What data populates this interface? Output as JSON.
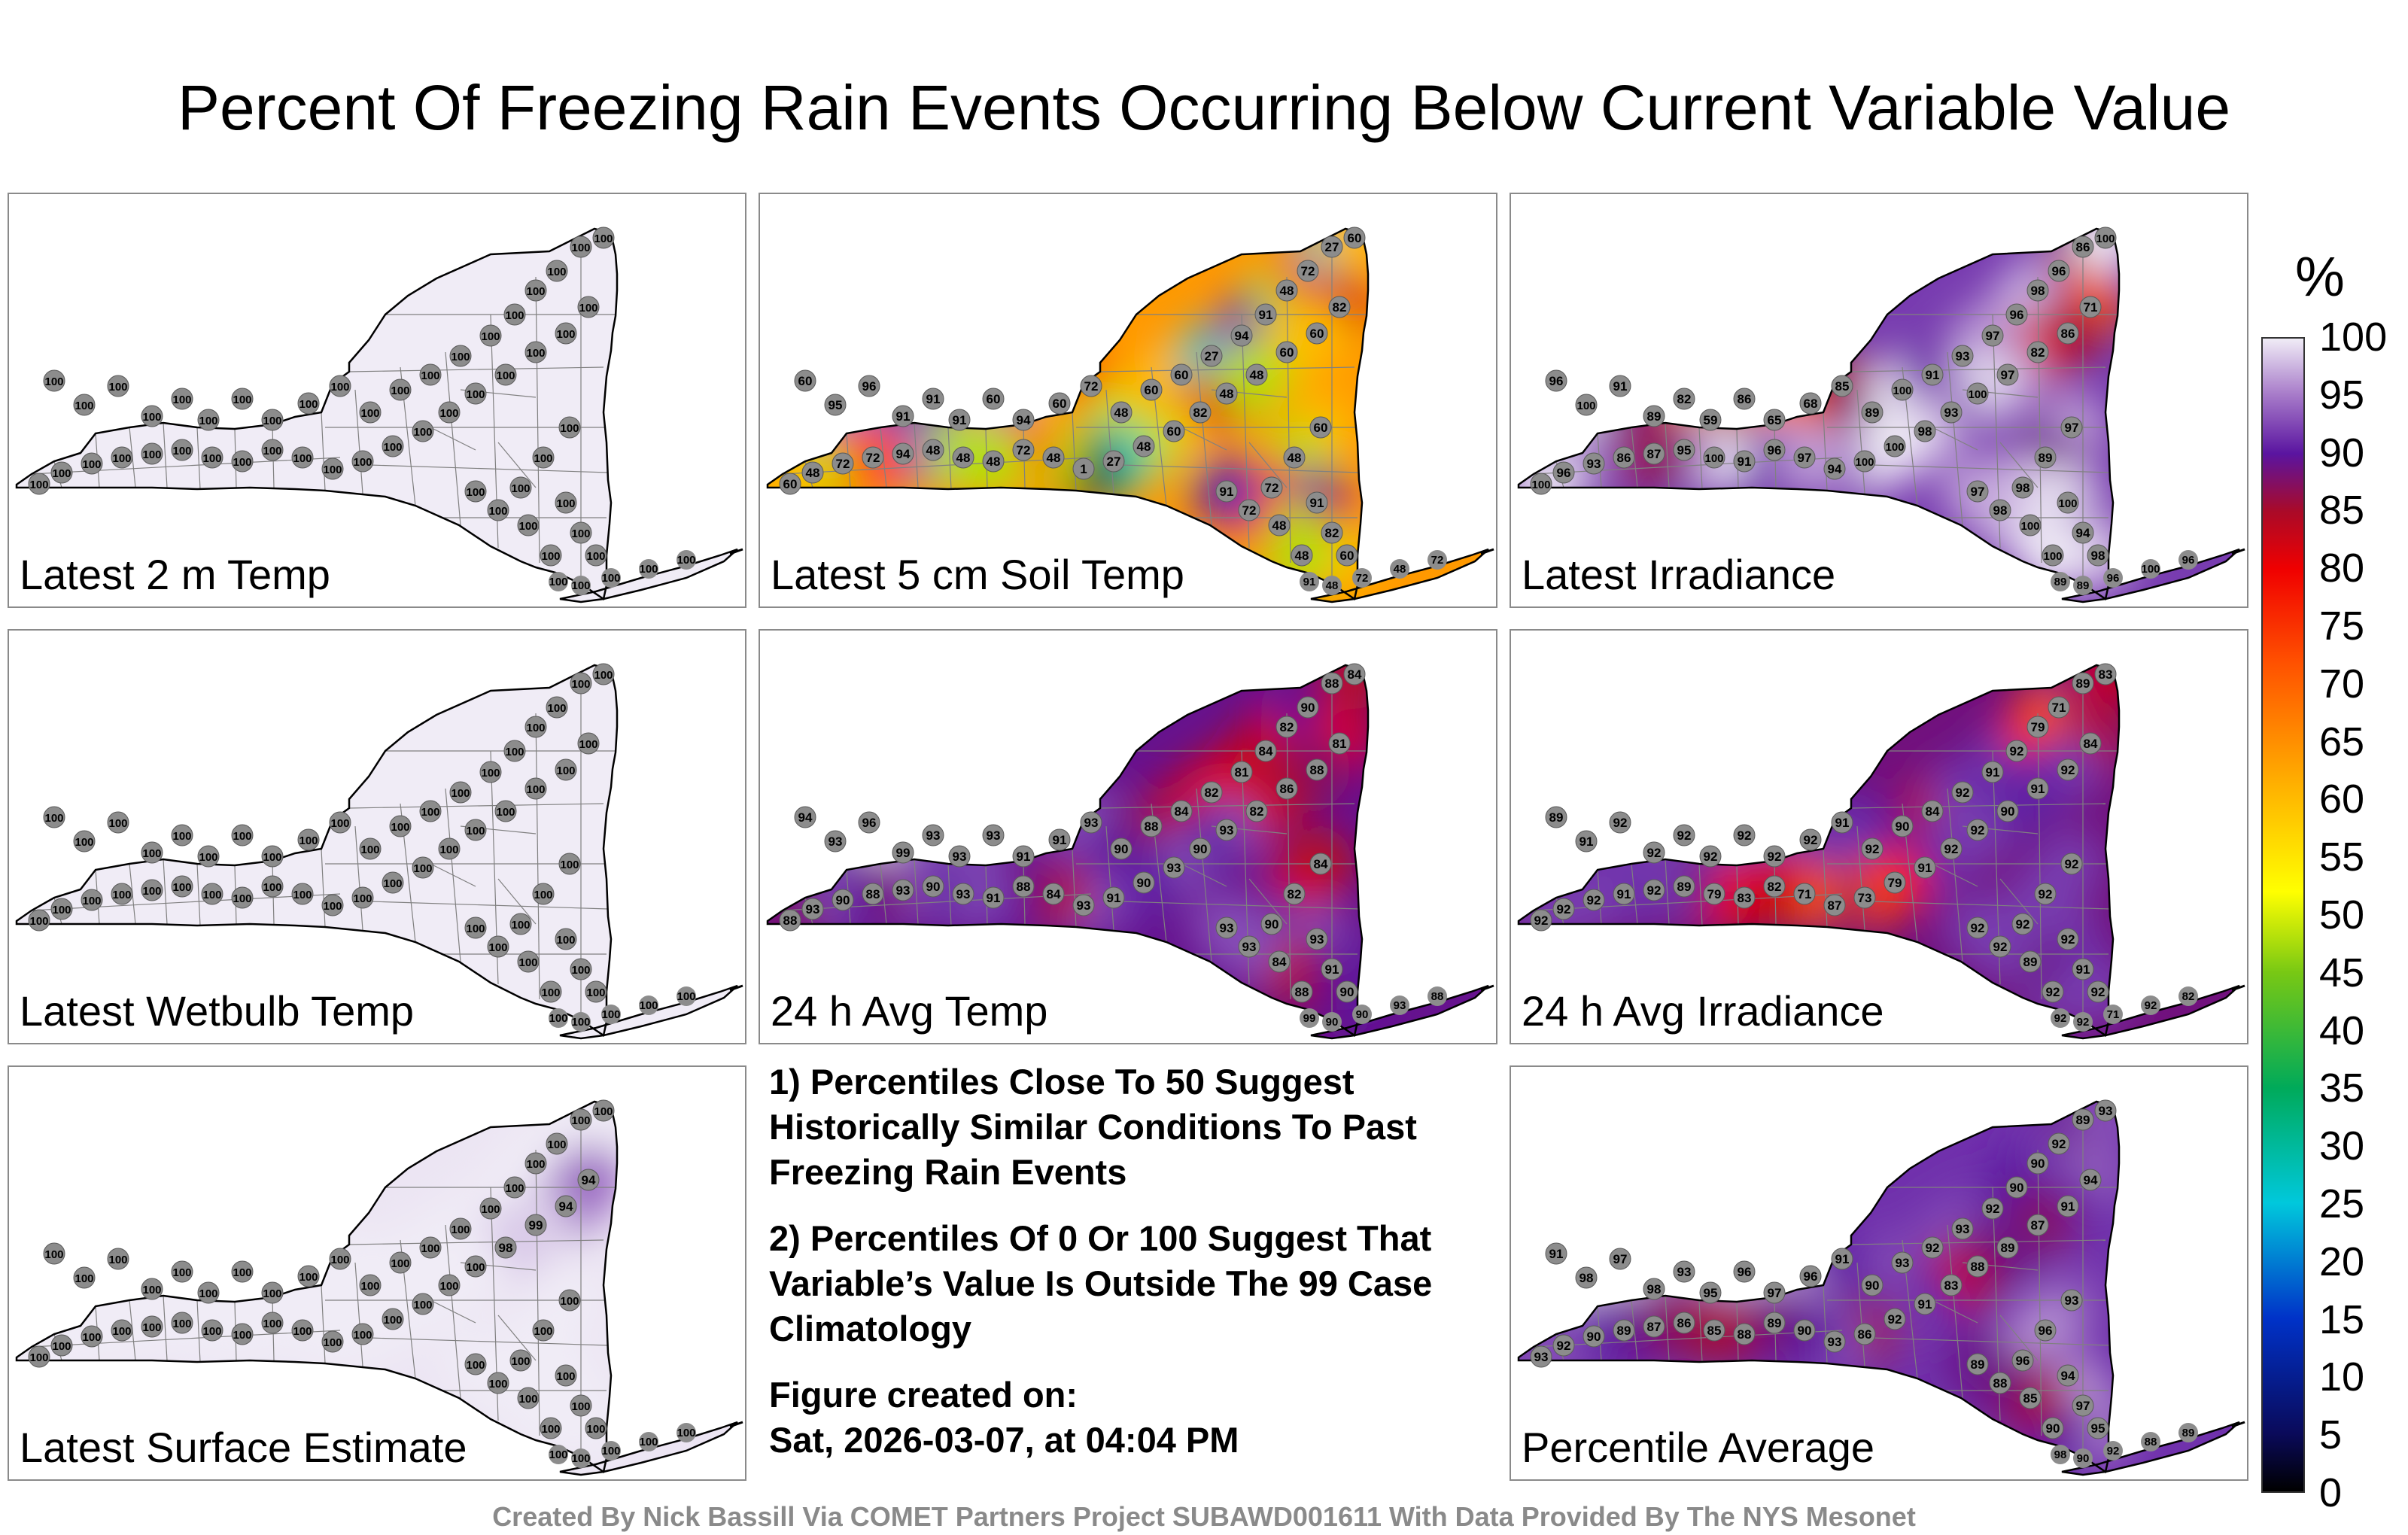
{
  "title": "Percent Of Freezing Rain Events Occurring Below Current Variable Value",
  "colors": {
    "panel_border": "#8a8a8a",
    "outline": "#000000",
    "county_lines": "#808080",
    "station_dot": "#8c8c8c",
    "credit_text": "#8a8a8a"
  },
  "panels": [
    {
      "label": "Latest 2 m Temp",
      "style": "uniform",
      "stations": [
        "100",
        "100",
        "100",
        "100",
        "100",
        "100",
        "100",
        "100",
        "100",
        "100",
        "100",
        "100",
        "100",
        "100",
        "100",
        "100",
        "100",
        "100",
        "100",
        "100",
        "100",
        "100",
        "100",
        "100",
        "100",
        "100",
        "100",
        "100",
        "100",
        "100",
        "100",
        "100",
        "100",
        "100",
        "100",
        "100",
        "100",
        "100",
        "100",
        "100",
        "100",
        "100",
        "100",
        "100",
        "100",
        "100",
        "100",
        "100",
        "100",
        "100"
      ]
    },
    {
      "label": "Latest 5 cm Soil Temp",
      "style": "soil",
      "stations": [
        "60",
        "95",
        "96",
        "91",
        "91",
        "91",
        "60",
        "94",
        "60",
        "72",
        "48",
        "60",
        "60",
        "27",
        "94",
        "91",
        "48",
        "72",
        "27",
        "60",
        "82",
        "60",
        "60",
        "48",
        "48",
        "82",
        "60",
        "48",
        "27",
        "1",
        "48",
        "72",
        "48",
        "48",
        "48",
        "94",
        "72",
        "72",
        "48",
        "60",
        "60",
        "48",
        "72",
        "91",
        "82",
        "60",
        "48",
        "48",
        "72",
        "91"
      ]
    },
    {
      "label": "Latest Irradiance",
      "style": "irradiance",
      "stations": [
        "96",
        "100",
        "91",
        "89",
        "82",
        "59",
        "86",
        "65",
        "68",
        "85",
        "89",
        "100",
        "91",
        "93",
        "97",
        "96",
        "98",
        "96",
        "86",
        "100",
        "71",
        "86",
        "82",
        "97",
        "100",
        "93",
        "98",
        "100",
        "100",
        "94",
        "97",
        "96",
        "91",
        "100",
        "95",
        "87",
        "86",
        "93",
        "96",
        "100",
        "97",
        "89",
        "98",
        "100",
        "94",
        "98",
        "100",
        "100",
        "98",
        "97"
      ]
    },
    {
      "label": "Latest Wetbulb Temp",
      "style": "uniform",
      "stations": [
        "100",
        "100",
        "100",
        "100",
        "100",
        "100",
        "100",
        "100",
        "100",
        "100",
        "100",
        "100",
        "100",
        "100",
        "100",
        "100",
        "100",
        "100",
        "100",
        "100",
        "100",
        "100",
        "100",
        "100",
        "100",
        "100",
        "100",
        "100",
        "100",
        "100",
        "100",
        "100",
        "100",
        "100",
        "100",
        "100",
        "100",
        "100",
        "100",
        "100",
        "100",
        "100",
        "100",
        "100",
        "100",
        "100",
        "100",
        "100",
        "100",
        "100"
      ]
    },
    {
      "label": "24 h Avg Temp",
      "style": "avgtemp",
      "stations": [
        "94",
        "93",
        "96",
        "99",
        "93",
        "93",
        "93",
        "91",
        "91",
        "93",
        "90",
        "88",
        "84",
        "82",
        "81",
        "84",
        "82",
        "90",
        "88",
        "84",
        "81",
        "88",
        "86",
        "82",
        "93",
        "90",
        "93",
        "90",
        "91",
        "93",
        "84",
        "88",
        "91",
        "93",
        "90",
        "93",
        "88",
        "90",
        "93",
        "88",
        "84",
        "82",
        "90",
        "93",
        "91",
        "90",
        "88",
        "84",
        "93",
        "93"
      ]
    },
    {
      "label": "24 h Avg Irradiance",
      "style": "avgirr",
      "stations": [
        "89",
        "91",
        "92",
        "92",
        "92",
        "92",
        "92",
        "92",
        "92",
        "91",
        "92",
        "90",
        "84",
        "92",
        "91",
        "92",
        "79",
        "71",
        "89",
        "83",
        "84",
        "92",
        "91",
        "90",
        "92",
        "92",
        "91",
        "79",
        "73",
        "87",
        "71",
        "82",
        "83",
        "79",
        "89",
        "92",
        "91",
        "92",
        "92",
        "92",
        "92",
        "92",
        "92",
        "92",
        "91",
        "92",
        "92",
        "89",
        "92",
        "92"
      ]
    },
    {
      "label": "Latest Surface Estimate",
      "style": "surface",
      "stations": [
        "100",
        "100",
        "100",
        "100",
        "100",
        "100",
        "100",
        "100",
        "100",
        "100",
        "100",
        "100",
        "100",
        "100",
        "100",
        "100",
        "100",
        "100",
        "100",
        "100",
        "94",
        "94",
        "99",
        "98",
        "100",
        "100",
        "100",
        "100",
        "100",
        "100",
        "100",
        "100",
        "100",
        "100",
        "100",
        "100",
        "100",
        "100",
        "100",
        "100",
        "100",
        "100",
        "100",
        "100",
        "100",
        "100",
        "100",
        "100",
        "100",
        "100"
      ]
    },
    {
      "label": "Percentile Average",
      "style": "average",
      "stations": [
        "91",
        "98",
        "97",
        "98",
        "93",
        "95",
        "96",
        "97",
        "96",
        "91",
        "90",
        "93",
        "92",
        "93",
        "92",
        "90",
        "90",
        "92",
        "89",
        "93",
        "94",
        "91",
        "87",
        "89",
        "88",
        "83",
        "91",
        "92",
        "86",
        "93",
        "90",
        "89",
        "88",
        "85",
        "86",
        "87",
        "89",
        "90",
        "92",
        "93",
        "93",
        "96",
        "96",
        "94",
        "97",
        "95",
        "90",
        "85",
        "88",
        "89"
      ]
    }
  ],
  "notes": {
    "note1": "1) Percentiles Close To 50 Suggest Historically Similar Conditions To Past Freezing Rain Events",
    "note2": "2) Percentiles Of 0 Or 100 Suggest That Variable’s Value Is Outside The 99 Case Climatology",
    "figure_created_label": "Figure created on:",
    "figure_created_date": "Sat, 2026-03-07, at 04:04 PM"
  },
  "colorbar": {
    "unit": "%",
    "ticks": [
      "100",
      "95",
      "90",
      "85",
      "80",
      "75",
      "70",
      "65",
      "60",
      "55",
      "50",
      "45",
      "40",
      "35",
      "30",
      "25",
      "20",
      "15",
      "10",
      "5",
      "0"
    ],
    "min": 0,
    "max": 100
  },
  "credit": "Created By Nick Bassill Via COMET Partners Project SUBAWD001611 With Data Provided By The NYS Mesonet"
}
